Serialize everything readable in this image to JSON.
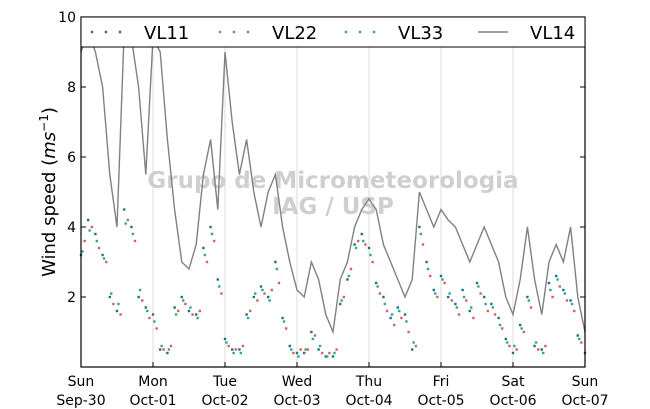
{
  "watermark": {
    "line1": "Grupo de Micrometeorologia",
    "line2": "IAG / USP"
  },
  "chart_data": {
    "type": "scatter",
    "ylabel": "Wind speed (m s⁻¹)",
    "ylabel_text": "Wind speed (",
    "ylabel_unit": "ms",
    "ylabel_exp": "−1",
    "ylabel_close": ")",
    "xlim": [
      0,
      7
    ],
    "ylim": [
      0,
      10
    ],
    "y_ticks": [
      2,
      4,
      6,
      8,
      10
    ],
    "x_ticks": [
      {
        "pos": 0,
        "day": "Sun",
        "date": "Sep-30"
      },
      {
        "pos": 1,
        "day": "Mon",
        "date": "Oct-01"
      },
      {
        "pos": 2,
        "day": "Tue",
        "date": "Oct-02"
      },
      {
        "pos": 3,
        "day": "Wed",
        "date": "Oct-03"
      },
      {
        "pos": 4,
        "day": "Thu",
        "date": "Oct-04"
      },
      {
        "pos": 5,
        "day": "Fri",
        "date": "Oct-05"
      },
      {
        "pos": 6,
        "day": "Sat",
        "date": "Oct-06"
      },
      {
        "pos": 7,
        "day": "Sun",
        "date": "Oct-07"
      }
    ],
    "grid": "vertical",
    "legend_position": "top",
    "series": [
      {
        "name": "VL11",
        "style": "points",
        "color": "#1f6f8b",
        "x": [
          0.0,
          0.1,
          0.2,
          0.3,
          0.4,
          0.5,
          0.6,
          0.7,
          0.8,
          0.9,
          1.0,
          1.1,
          1.2,
          1.3,
          1.4,
          1.5,
          1.6,
          1.7,
          1.8,
          1.9,
          2.0,
          2.1,
          2.2,
          2.3,
          2.4,
          2.5,
          2.6,
          2.7,
          2.8,
          2.9,
          3.0,
          3.1,
          3.2,
          3.3,
          3.4,
          3.5,
          3.6,
          3.7,
          3.8,
          3.9,
          4.0,
          4.1,
          4.2,
          4.3,
          4.4,
          4.5,
          4.6,
          4.7,
          4.8,
          4.9,
          5.0,
          5.1,
          5.2,
          5.3,
          5.4,
          5.5,
          5.6,
          5.7,
          5.8,
          5.9,
          6.0,
          6.1,
          6.2,
          6.3,
          6.4,
          6.5,
          6.6,
          6.7,
          6.8,
          6.9,
          7.0
        ],
        "y": [
          3.2,
          4.2,
          3.8,
          3.2,
          2.0,
          1.6,
          4.5,
          4.0,
          2.0,
          1.7,
          1.5,
          0.5,
          0.4,
          1.7,
          2.0,
          1.6,
          1.5,
          3.4,
          4.0,
          2.5,
          0.8,
          0.5,
          0.5,
          1.5,
          2.0,
          2.3,
          2.0,
          3.0,
          1.4,
          0.6,
          0.4,
          0.4,
          1.0,
          0.5,
          0.3,
          0.3,
          1.8,
          2.5,
          3.5,
          3.8,
          3.4,
          2.4,
          2.0,
          1.4,
          1.7,
          1.5,
          0.5,
          4.0,
          3.0,
          2.2,
          2.6,
          2.0,
          1.8,
          2.2,
          1.6,
          2.4,
          2.0,
          1.8,
          1.4,
          0.8,
          0.4,
          1.2,
          2.0,
          0.6,
          0.5,
          2.4,
          2.6,
          2.2,
          1.9,
          0.9,
          0.4
        ]
      },
      {
        "name": "VL22",
        "style": "points",
        "color": "#d95f5f",
        "x": [
          0.05,
          0.15,
          0.25,
          0.35,
          0.45,
          0.55,
          0.65,
          0.75,
          0.85,
          0.95,
          1.05,
          1.15,
          1.25,
          1.35,
          1.45,
          1.55,
          1.65,
          1.75,
          1.85,
          1.95,
          2.05,
          2.15,
          2.25,
          2.35,
          2.45,
          2.55,
          2.65,
          2.75,
          2.85,
          2.95,
          3.05,
          3.15,
          3.25,
          3.35,
          3.45,
          3.55,
          3.65,
          3.75,
          3.85,
          3.95,
          4.05,
          4.15,
          4.25,
          4.35,
          4.45,
          4.55,
          4.65,
          4.75,
          4.85,
          4.95,
          5.05,
          5.15,
          5.25,
          5.35,
          5.45,
          5.55,
          5.65,
          5.75,
          5.85,
          5.95,
          6.05,
          6.15,
          6.25,
          6.35,
          6.45,
          6.55,
          6.65,
          6.75,
          6.85,
          6.95
        ],
        "y": [
          3.6,
          4.0,
          3.4,
          3.0,
          1.8,
          1.5,
          4.2,
          3.6,
          1.9,
          1.4,
          1.1,
          0.5,
          0.6,
          1.6,
          1.8,
          1.5,
          1.6,
          3.0,
          3.6,
          2.1,
          0.6,
          0.5,
          0.6,
          1.6,
          1.9,
          2.1,
          2.2,
          2.4,
          1.1,
          0.4,
          0.5,
          0.5,
          0.9,
          0.4,
          0.4,
          0.5,
          2.0,
          2.8,
          3.6,
          3.5,
          3.0,
          2.1,
          1.6,
          1.2,
          1.4,
          1.0,
          0.6,
          3.5,
          2.6,
          2.0,
          2.4,
          1.9,
          1.5,
          1.9,
          1.4,
          2.1,
          1.6,
          1.5,
          1.1,
          0.6,
          0.5,
          1.0,
          1.7,
          0.5,
          0.6,
          2.0,
          2.3,
          1.9,
          1.6,
          0.7
        ]
      },
      {
        "name": "VL33",
        "style": "points",
        "color": "#2aa890",
        "x": [
          0.02,
          0.12,
          0.22,
          0.32,
          0.42,
          0.52,
          0.62,
          0.72,
          0.82,
          0.92,
          1.02,
          1.12,
          1.22,
          1.32,
          1.42,
          1.52,
          1.62,
          1.72,
          1.82,
          1.92,
          2.02,
          2.12,
          2.22,
          2.32,
          2.42,
          2.52,
          2.62,
          2.72,
          2.82,
          2.92,
          3.02,
          3.12,
          3.22,
          3.32,
          3.42,
          3.52,
          3.62,
          3.72,
          3.82,
          3.92,
          4.02,
          4.12,
          4.22,
          4.32,
          4.42,
          4.52,
          4.62,
          4.72,
          4.82,
          4.92,
          5.02,
          5.12,
          5.22,
          5.32,
          5.42,
          5.52,
          5.62,
          5.72,
          5.82,
          5.92,
          6.02,
          6.12,
          6.22,
          6.32,
          6.42,
          6.52,
          6.62,
          6.72,
          6.82,
          6.92
        ],
        "y": [
          3.3,
          3.9,
          3.6,
          3.1,
          2.1,
          1.8,
          4.1,
          3.8,
          2.2,
          1.6,
          1.3,
          0.6,
          0.5,
          1.5,
          1.9,
          1.7,
          1.4,
          3.2,
          3.8,
          2.3,
          0.7,
          0.4,
          0.4,
          1.4,
          2.1,
          2.2,
          1.9,
          2.8,
          1.3,
          0.5,
          0.3,
          0.5,
          0.8,
          0.6,
          0.3,
          0.4,
          1.9,
          2.6,
          3.4,
          3.6,
          3.2,
          2.3,
          1.8,
          1.5,
          1.6,
          1.3,
          0.7,
          3.8,
          2.8,
          2.1,
          2.5,
          2.1,
          1.7,
          2.0,
          1.7,
          2.3,
          1.8,
          1.7,
          1.2,
          0.7,
          0.6,
          1.1,
          1.9,
          0.7,
          0.4,
          2.2,
          2.5,
          2.1,
          1.8,
          0.8
        ]
      },
      {
        "name": "VL14",
        "style": "line",
        "color": "#808080",
        "x": [
          0.0,
          0.1,
          0.2,
          0.3,
          0.4,
          0.5,
          0.6,
          0.7,
          0.8,
          0.9,
          1.0,
          1.1,
          1.2,
          1.3,
          1.4,
          1.5,
          1.6,
          1.7,
          1.8,
          1.9,
          2.0,
          2.1,
          2.2,
          2.3,
          2.4,
          2.5,
          2.6,
          2.7,
          2.8,
          2.9,
          3.0,
          3.1,
          3.2,
          3.3,
          3.4,
          3.5,
          3.6,
          3.7,
          3.8,
          3.9,
          4.0,
          4.1,
          4.2,
          4.3,
          4.4,
          4.5,
          4.6,
          4.7,
          4.8,
          4.9,
          5.0,
          5.1,
          5.2,
          5.3,
          5.4,
          5.5,
          5.6,
          5.7,
          5.8,
          5.9,
          6.0,
          6.1,
          6.2,
          6.3,
          6.4,
          6.5,
          6.6,
          6.7,
          6.8,
          6.9,
          7.0
        ],
        "y": [
          9.0,
          9.6,
          9.0,
          8.0,
          5.5,
          4.0,
          9.6,
          9.4,
          8.0,
          5.5,
          9.4,
          9.0,
          6.5,
          4.5,
          3.0,
          2.8,
          3.5,
          5.5,
          6.5,
          4.5,
          9.0,
          7.0,
          5.5,
          6.5,
          5.0,
          4.0,
          5.0,
          5.5,
          4.0,
          3.0,
          2.2,
          2.0,
          3.0,
          2.5,
          1.5,
          1.0,
          2.5,
          3.0,
          4.0,
          4.5,
          4.8,
          4.5,
          3.5,
          3.0,
          2.5,
          2.0,
          2.5,
          5.0,
          4.5,
          4.0,
          4.5,
          4.2,
          4.0,
          3.5,
          3.0,
          3.5,
          4.0,
          3.5,
          3.0,
          2.0,
          1.5,
          2.5,
          4.0,
          2.5,
          1.5,
          3.0,
          3.5,
          3.0,
          4.0,
          2.0,
          1.0
        ]
      }
    ]
  }
}
